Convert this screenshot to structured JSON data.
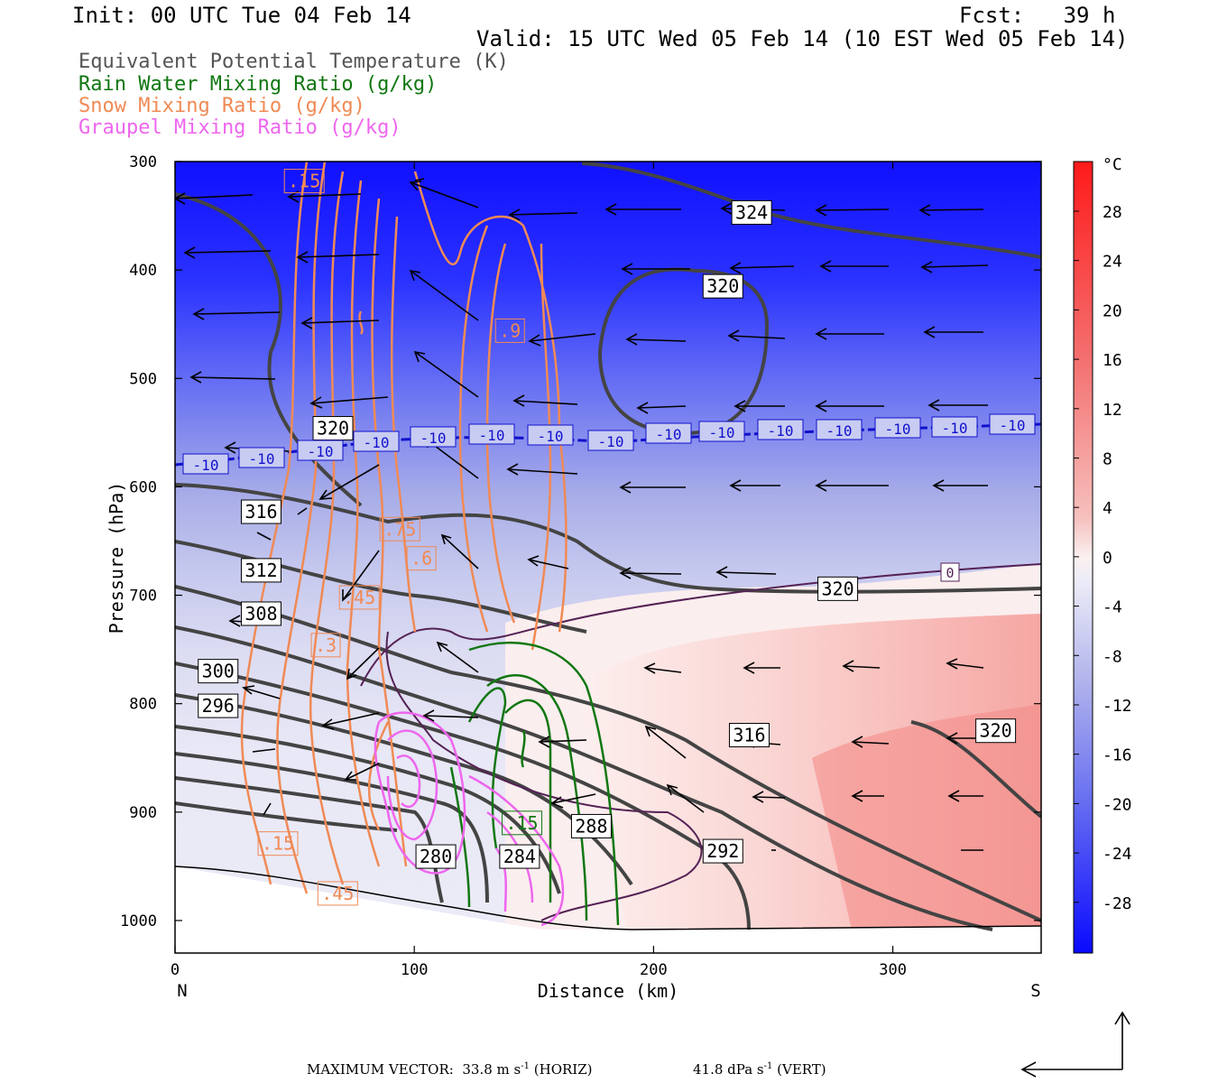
{
  "header": {
    "init": "Init: 00 UTC Tue 04 Feb 14",
    "fcst": "Fcst:   39 h",
    "valid": "Valid: 15 UTC Wed 05 Feb 14 (10 EST Wed 05 Feb 14)"
  },
  "legend": [
    {
      "label": "Equivalent Potential Temperature (K)",
      "color": "#555555"
    },
    {
      "label": "Rain Water Mixing Ratio (g/kg)",
      "color": "#117711"
    },
    {
      "label": "Snow Mixing Ratio (g/kg)",
      "color": "#f08a55"
    },
    {
      "label": "Graupel Mixing Ratio (g/kg)",
      "color": "#ee66ee"
    }
  ],
  "chart_data": {
    "type": "heatmap",
    "xlabel": "Distance (km)",
    "ylabel": "Pressure (hPa)",
    "xlim": [
      0,
      362
    ],
    "ylim": [
      1030,
      300
    ],
    "x_ticks": [
      0,
      100,
      200,
      300
    ],
    "y_ticks": [
      300,
      400,
      500,
      600,
      700,
      800,
      900,
      1000
    ],
    "left_end_label": "N",
    "right_end_label": "S",
    "colorbar": {
      "unit": "°C",
      "ticks": [
        28,
        24,
        20,
        16,
        12,
        8,
        4,
        0,
        -4,
        -8,
        -12,
        -16,
        -20,
        -24,
        -28
      ],
      "top_color": "#ff1a1a",
      "bottom_color": "#0a0aff"
    },
    "theta_e_labels": [
      {
        "text": "324",
        "x": 241,
        "p": 347
      },
      {
        "text": "320",
        "x": 229,
        "p": 415
      },
      {
        "text": "320",
        "x": 66,
        "p": 546
      },
      {
        "text": "316",
        "x": 36,
        "p": 623
      },
      {
        "text": "312",
        "x": 36,
        "p": 677
      },
      {
        "text": "308",
        "x": 36,
        "p": 717
      },
      {
        "text": "300",
        "x": 18,
        "p": 770
      },
      {
        "text": "296",
        "x": 18,
        "p": 802
      },
      {
        "text": "320",
        "x": 277,
        "p": 694
      },
      {
        "text": "316",
        "x": 240,
        "p": 829
      },
      {
        "text": "320",
        "x": 343,
        "p": 825
      },
      {
        "text": "288",
        "x": 174,
        "p": 913
      },
      {
        "text": "292",
        "x": 229,
        "p": 936
      },
      {
        "text": "284",
        "x": 144,
        "p": 941
      },
      {
        "text": "280",
        "x": 109,
        "p": 941
      }
    ],
    "isotherm_minus10_labels": [
      "-10",
      "-10",
      "-10",
      "-10",
      "-10",
      "-10",
      "-10",
      "-10",
      "-10",
      "-10",
      "-10",
      "-10",
      "-10",
      "-10",
      "-10"
    ],
    "isotherm_0_label": "0",
    "snow_labels": [
      {
        "text": ".15",
        "x": 54,
        "p": 318
      },
      {
        "text": ".9",
        "x": 140,
        "p": 456
      },
      {
        "text": ".75",
        "x": 94,
        "p": 639
      },
      {
        "text": ".6",
        "x": 103,
        "p": 666
      },
      {
        "text": ".45",
        "x": 77,
        "p": 702
      },
      {
        "text": ".3",
        "x": 63,
        "p": 746
      },
      {
        "text": ".15",
        "x": 43,
        "p": 929
      },
      {
        "text": ".45",
        "x": 68,
        "p": 975
      }
    ],
    "rain_labels": [
      {
        "text": ".15",
        "x": 145,
        "p": 910
      }
    ],
    "graupel_labels": []
  },
  "footer": {
    "max_vector": "MAXIMUM VECTOR:  33.8 m s",
    "horiz_unit": "(HORIZ)",
    "vert_value": "41.8 dPa s",
    "vert_unit": "(VERT)",
    "exponent": "-1"
  }
}
